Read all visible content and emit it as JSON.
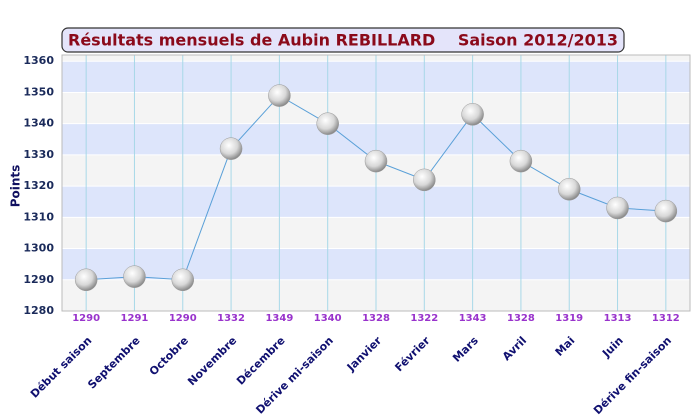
{
  "chart_data": {
    "type": "line",
    "title": "Résultats mensuels de  Aubin REBILLARD",
    "subtitle": "Saison 2012/2013",
    "y_label": "Points",
    "categories": [
      "Début saison",
      "Septembre",
      "Octobre",
      "Novembre",
      "Décembre",
      "Dérive mi-saison",
      "Janvier",
      "Février",
      "Mars",
      "Avril",
      "Mai",
      "Juin",
      "Dérive fin-saison"
    ],
    "series": [
      {
        "name": "Points",
        "color": "#5aa0d8",
        "values": [
          1290,
          1291,
          1290,
          1332,
          1349,
          1340,
          1328,
          1322,
          1343,
          1328,
          1319,
          1313,
          1312
        ]
      }
    ],
    "ylim": [
      1280,
      1362
    ],
    "yticks": [
      1280,
      1290,
      1300,
      1310,
      1320,
      1330,
      1340,
      1350,
      1360
    ],
    "grid": true
  }
}
